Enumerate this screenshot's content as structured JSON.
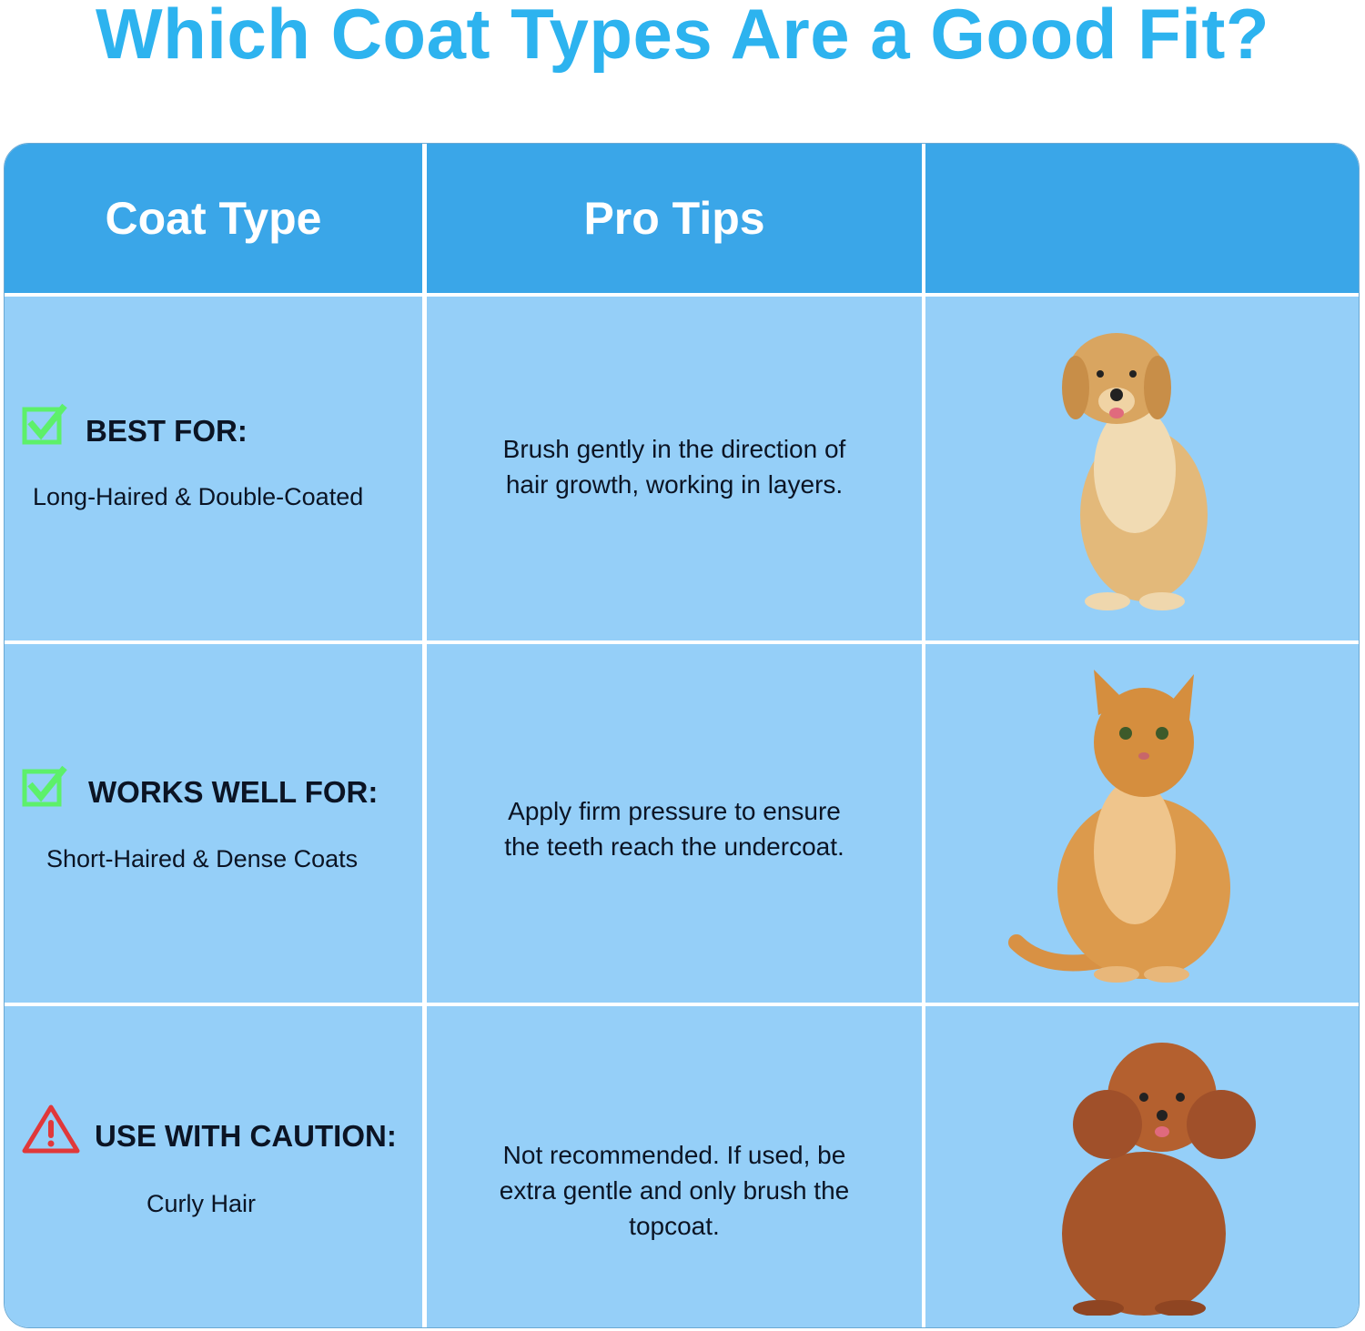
{
  "title": "Which Coat Types Are a Good Fit?",
  "table": {
    "headers": [
      "Coat Type",
      "Pro Tips",
      ""
    ],
    "rows": [
      {
        "icon": "checkbox-check-icon",
        "label": "BEST FOR:",
        "coat": "Long-Haired & Double-Coated",
        "tip": "Brush gently in the direction of hair growth, working in layers.",
        "pet": "golden-retriever-image"
      },
      {
        "icon": "checkbox-check-icon",
        "label": "WORKS WELL FOR:",
        "coat": "Short-Haired & Dense Coats",
        "tip": "Apply firm pressure to ensure the teeth reach the undercoat.",
        "pet": "orange-tabby-cat-image"
      },
      {
        "icon": "warning-triangle-icon",
        "label": "USE WITH CAUTION:",
        "coat": "Curly Hair",
        "tip": "Not recommended. If used, be extra gentle and only brush the topcoat.",
        "pet": "toy-poodle-image"
      }
    ]
  },
  "colors": {
    "title": "#2db3ef",
    "header": "#3aa6e8",
    "body": "#95cff8",
    "check": "#5df06a",
    "warning": "#e0383a"
  }
}
